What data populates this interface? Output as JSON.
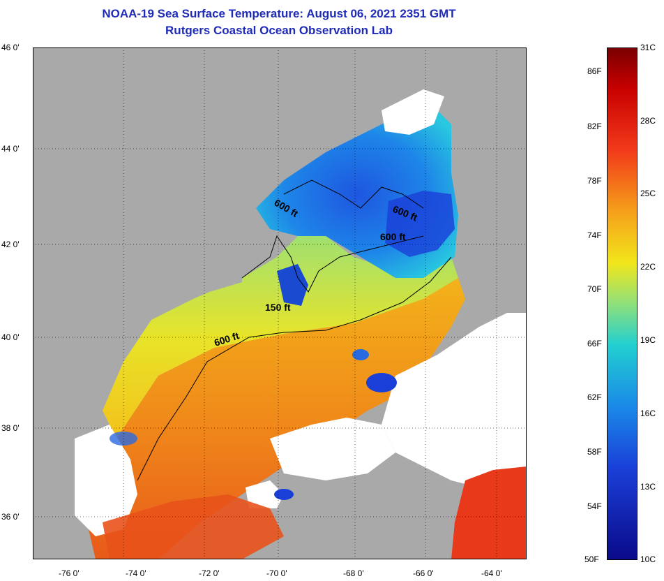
{
  "header": {
    "title": "NOAA-19 Sea Surface Temperature:  August 06, 2021 2351 GMT",
    "subtitle": "Rutgers Coastal Ocean Observation Lab"
  },
  "map": {
    "lat_labels": [
      "46 0'",
      "44 0'",
      "42 0'",
      "40 0'",
      "38 0'",
      "36 0'"
    ],
    "lon_labels": [
      "-76 0'",
      "-74 0'",
      "-72 0'",
      "-70 0'",
      "-68 0'",
      "-66 0'",
      "-64 0'"
    ],
    "contour_labels": [
      "600 ft",
      "600 ft",
      "600 ft",
      "150 ft",
      "600 ft"
    ],
    "colors": {
      "land": "#a9a9a9",
      "cloud": "#ffffff",
      "cold": "#1a3fd8",
      "cool": "#22b8e8",
      "mild": "#8fe07a",
      "warm": "#f2e21a",
      "hot": "#f08a1a",
      "very_hot": "#e83a1a"
    }
  },
  "colorbar": {
    "celsius": [
      "31C",
      "28C",
      "25C",
      "22C",
      "19C",
      "16C",
      "13C",
      "10C"
    ],
    "fahrenheit": [
      "86F",
      "82F",
      "78F",
      "74F",
      "70F",
      "66F",
      "62F",
      "58F",
      "54F",
      "50F"
    ]
  }
}
